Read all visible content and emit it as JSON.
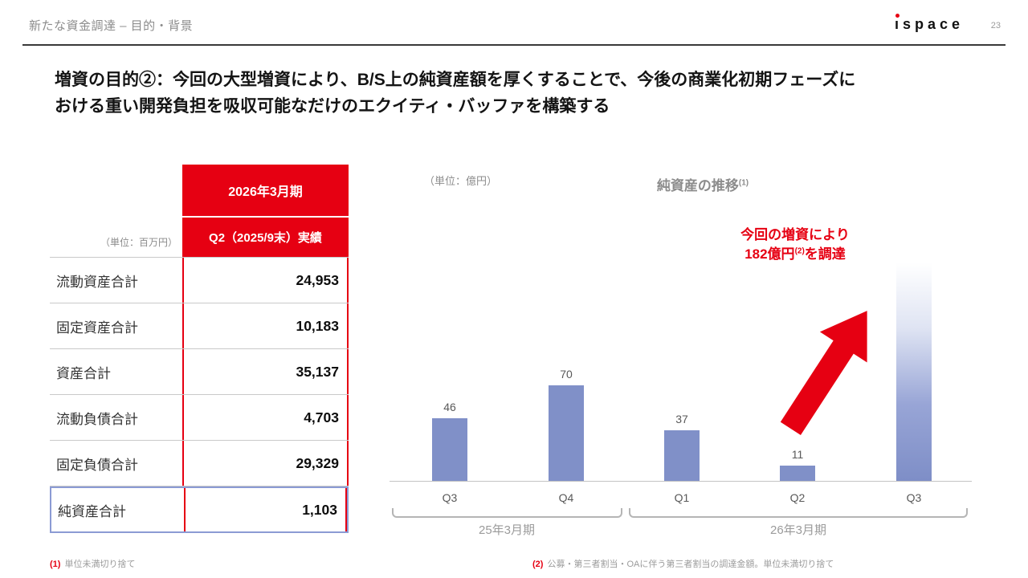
{
  "header": {
    "title": "新たな資金調達 – 目的・背景",
    "page_number": "23",
    "logo": {
      "i": "ı",
      "rest": "space"
    }
  },
  "heading": {
    "line1": "増資の目的②：今回の大型増資により、B/S上の純資産額を厚くすることで、今後の商業化初期フェーズに",
    "line2": "おける重い開発負担を吸収可能なだけのエクイティ・バッファを構築する"
  },
  "table": {
    "unit_label": "（単位：百万円）",
    "period_header": "2026年3月期",
    "quarter_header": "Q2（2025/9末）実績",
    "rows": [
      {
        "label": "流動資産合計",
        "value": "24,953"
      },
      {
        "label": "固定資産合計",
        "value": "10,183"
      },
      {
        "label": "資産合計",
        "value": "35,137"
      },
      {
        "label": "流動負債合計",
        "value": "4,703"
      },
      {
        "label": "固定負債合計",
        "value": "29,329"
      },
      {
        "label": "純資産合計",
        "value": "1,103"
      }
    ]
  },
  "chart": {
    "unit_label": "（単位：億円）",
    "title": "純資産の推移",
    "title_sup": "(1)",
    "annotation_line1": "今回の増資により",
    "annotation_line2_pre": "182億円",
    "annotation_line2_sup": "(2)",
    "annotation_line2_post": "を調達"
  },
  "chart_data": {
    "type": "bar",
    "title": "純資産の推移(1)",
    "unit": "億円",
    "categories": [
      "Q3",
      "Q4",
      "Q1",
      "Q2",
      "Q3"
    ],
    "values": [
      46,
      70,
      37,
      11,
      null
    ],
    "projected_bar": {
      "index": 4,
      "estimated_value": 160,
      "annotation": "今回の増資により182億円(2)を調達"
    },
    "groups": [
      {
        "label": "25年3月期",
        "span": [
          "Q3",
          "Q4"
        ]
      },
      {
        "label": "26年3月期",
        "span": [
          "Q1",
          "Q2",
          "Q3"
        ]
      }
    ],
    "ylim": [
      0,
      230
    ],
    "bar_color": "#8090c8",
    "legend": false,
    "grid": false
  },
  "footnotes": {
    "note1_marker": "(1)",
    "note1_text": "単位未満切り捨て",
    "note2_marker": "(2)",
    "note2_text": "公募・第三者割当・OAに伴う第三者割当の調達金額。単位未満切り捨て"
  },
  "colors": {
    "accent_red": "#e60012",
    "bar_blue": "#8090c8",
    "highlight_border": "#8b9bd4"
  }
}
